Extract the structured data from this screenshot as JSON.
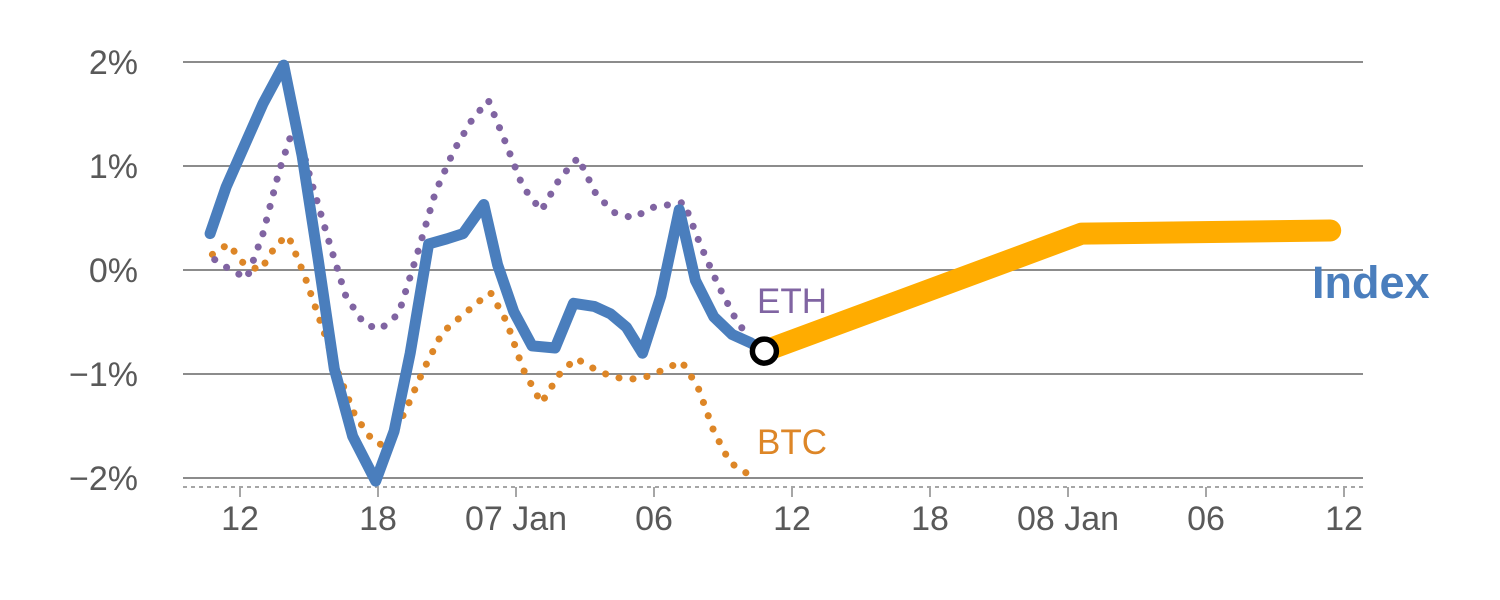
{
  "chart_data": {
    "type": "line",
    "title": "",
    "xlabel": "",
    "ylabel": "",
    "grid": "horizontal",
    "legend": "inline-labels",
    "x_axis": {
      "unit": "time (6h ticks)",
      "range": [
        9.6,
        60.8
      ],
      "ticks": [
        {
          "x": 12,
          "label": "12"
        },
        {
          "x": 18,
          "label": "18"
        },
        {
          "x": 24,
          "label": "07 Jan"
        },
        {
          "x": 30,
          "label": "06"
        },
        {
          "x": 36,
          "label": "12"
        },
        {
          "x": 42,
          "label": "18"
        },
        {
          "x": 48,
          "label": "08 Jan"
        },
        {
          "x": 54,
          "label": "06"
        },
        {
          "x": 60,
          "label": "12"
        }
      ]
    },
    "y_axis": {
      "unit": "%",
      "range": [
        -2.15,
        2.1
      ],
      "ticks": [
        {
          "v": 2,
          "label": "2%"
        },
        {
          "v": 1,
          "label": "1%"
        },
        {
          "v": 0,
          "label": "0%"
        },
        {
          "v": -1,
          "label": "−1%"
        },
        {
          "v": -2,
          "label": "−2%"
        }
      ]
    },
    "colors": {
      "grid": "#8c8c8c",
      "axis_text": "#595959",
      "axis_line": "#a6a6a6",
      "index_blue": "#4a7ebd",
      "projection_orange": "#ffac00",
      "eth_purple": "#8064a2",
      "btc_orange": "#dd8627"
    },
    "series": [
      {
        "id": "btc",
        "name": "BTC",
        "color": "#dd8627",
        "style": "dotted",
        "points": [
          [
            10.8,
            0.15
          ],
          [
            11.5,
            0.25
          ],
          [
            12.2,
            0.05
          ],
          [
            12.9,
            0.0
          ],
          [
            13.6,
            0.25
          ],
          [
            14.1,
            0.33
          ],
          [
            14.8,
            -0.05
          ],
          [
            15.5,
            -0.5
          ],
          [
            16.2,
            -0.95
          ],
          [
            17.0,
            -1.4
          ],
          [
            17.8,
            -1.65
          ],
          [
            18.4,
            -1.7
          ],
          [
            19.2,
            -1.35
          ],
          [
            20.0,
            -0.95
          ],
          [
            20.8,
            -0.6
          ],
          [
            21.6,
            -0.45
          ],
          [
            22.4,
            -0.3
          ],
          [
            22.9,
            -0.22
          ],
          [
            23.6,
            -0.5
          ],
          [
            24.3,
            -0.95
          ],
          [
            25.1,
            -1.28
          ],
          [
            25.9,
            -1.0
          ],
          [
            26.6,
            -0.85
          ],
          [
            27.4,
            -0.95
          ],
          [
            28.2,
            -1.03
          ],
          [
            29.0,
            -1.05
          ],
          [
            29.8,
            -1.02
          ],
          [
            30.5,
            -0.95
          ],
          [
            31.2,
            -0.88
          ],
          [
            31.9,
            -1.12
          ],
          [
            32.6,
            -1.55
          ],
          [
            33.3,
            -1.85
          ],
          [
            34.0,
            -1.95
          ]
        ]
      },
      {
        "id": "eth",
        "name": "ETH",
        "color": "#8064a2",
        "style": "dotted",
        "points": [
          [
            10.9,
            0.1
          ],
          [
            11.6,
            0.0
          ],
          [
            12.3,
            -0.08
          ],
          [
            13.0,
            0.35
          ],
          [
            13.7,
            0.95
          ],
          [
            14.4,
            1.42
          ],
          [
            15.1,
            0.85
          ],
          [
            15.9,
            0.25
          ],
          [
            16.6,
            -0.25
          ],
          [
            17.4,
            -0.52
          ],
          [
            18.1,
            -0.57
          ],
          [
            18.9,
            -0.42
          ],
          [
            19.7,
            0.15
          ],
          [
            20.5,
            0.75
          ],
          [
            21.3,
            1.15
          ],
          [
            22.1,
            1.45
          ],
          [
            22.8,
            1.63
          ],
          [
            23.5,
            1.25
          ],
          [
            24.3,
            0.8
          ],
          [
            25.1,
            0.57
          ],
          [
            25.9,
            0.88
          ],
          [
            26.7,
            1.08
          ],
          [
            27.5,
            0.72
          ],
          [
            28.3,
            0.55
          ],
          [
            29.1,
            0.5
          ],
          [
            29.9,
            0.6
          ],
          [
            30.7,
            0.63
          ],
          [
            31.3,
            0.65
          ],
          [
            32.0,
            0.25
          ],
          [
            32.8,
            -0.15
          ],
          [
            33.5,
            -0.45
          ],
          [
            34.1,
            -0.65
          ]
        ]
      },
      {
        "id": "index",
        "name": "Index",
        "color": "#4a7ebd",
        "style": "line",
        "points": [
          [
            10.7,
            0.35
          ],
          [
            11.4,
            0.8
          ],
          [
            12.1,
            1.15
          ],
          [
            13.0,
            1.6
          ],
          [
            13.9,
            1.97
          ],
          [
            14.7,
            1.1
          ],
          [
            15.4,
            0.1
          ],
          [
            16.1,
            -0.95
          ],
          [
            16.9,
            -1.6
          ],
          [
            17.9,
            -2.03
          ],
          [
            18.7,
            -1.55
          ],
          [
            19.4,
            -0.8
          ],
          [
            20.2,
            0.25
          ],
          [
            21.0,
            0.3
          ],
          [
            21.7,
            0.35
          ],
          [
            22.6,
            0.63
          ],
          [
            23.2,
            0.05
          ],
          [
            23.9,
            -0.4
          ],
          [
            24.7,
            -0.73
          ],
          [
            25.7,
            -0.75
          ],
          [
            26.5,
            -0.32
          ],
          [
            27.4,
            -0.35
          ],
          [
            28.1,
            -0.42
          ],
          [
            28.8,
            -0.55
          ],
          [
            29.5,
            -0.8
          ],
          [
            30.3,
            -0.25
          ],
          [
            31.1,
            0.58
          ],
          [
            31.8,
            -0.1
          ],
          [
            32.6,
            -0.45
          ],
          [
            33.4,
            -0.62
          ],
          [
            34.2,
            -0.7
          ],
          [
            34.8,
            -0.78
          ]
        ]
      },
      {
        "id": "index-projection",
        "name": "Index projection",
        "color": "#ffac00",
        "style": "band",
        "points": [
          [
            34.8,
            -0.78
          ],
          [
            48.6,
            0.35
          ],
          [
            59.4,
            0.38
          ]
        ]
      }
    ],
    "marker": {
      "x": 34.8,
      "y": -0.78,
      "shape": "circle",
      "color": "#000000",
      "fill": "#ffffff"
    },
    "labels": {
      "eth": {
        "text": "ETH",
        "color": "#8064a2"
      },
      "btc": {
        "text": "BTC",
        "color": "#dd8627"
      },
      "index": {
        "text": "Index",
        "color": "#4a7ebd"
      }
    }
  }
}
